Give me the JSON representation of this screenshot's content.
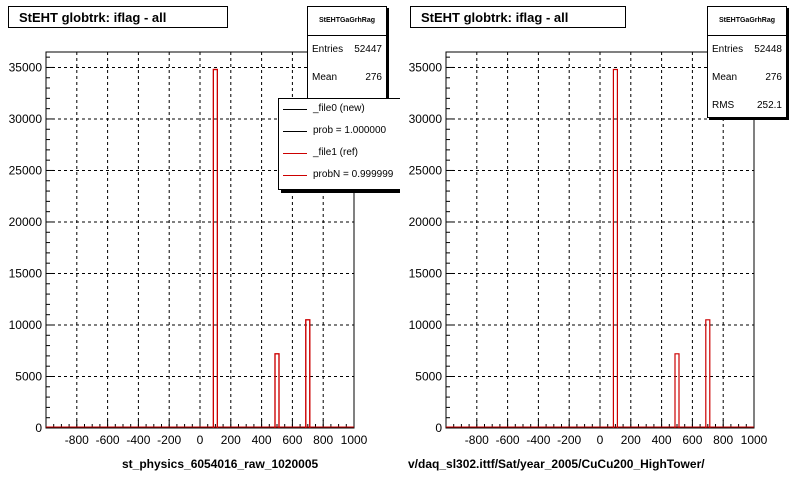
{
  "colors": {
    "new": "#000000",
    "ref": "#cc0000"
  },
  "chart_data": [
    {
      "type": "bar",
      "title": "StEHT globtrk: iflag - all",
      "xlabel": "",
      "ylabel": "",
      "xlim": [
        -1000,
        1000
      ],
      "ylim": [
        0,
        36500
      ],
      "xticks": [
        "-800",
        "-600",
        "-400",
        "-200",
        "0",
        "200",
        "400",
        "600",
        "800",
        "1000"
      ],
      "yticks": [
        "0",
        "5000",
        "10000",
        "15000",
        "20000",
        "25000",
        "30000",
        "35000"
      ],
      "grid": true,
      "series": [
        {
          "name": "_file0 (new)",
          "x": [
            100,
            500,
            700
          ],
          "values": [
            34800,
            7200,
            10500
          ]
        },
        {
          "name": "_file1 (ref)",
          "x": [
            100,
            500,
            700
          ],
          "values": [
            34800,
            7200,
            10500
          ]
        }
      ],
      "stats": {
        "box": "StEHTGaGrhRag",
        "entries_label": "Entries",
        "entries": "52447",
        "mean_label": "Mean",
        "mean": "276"
      },
      "legend": {
        "position": "top-right",
        "items": [
          {
            "label": "_file0 (new)",
            "color": "#000000"
          },
          {
            "label": "prob = 1.000000",
            "color": "#000000"
          },
          {
            "label": "_file1 (ref)",
            "color": "#cc0000"
          },
          {
            "label": "probN = 0.999999",
            "color": "#cc0000"
          }
        ]
      },
      "footer": "st_physics_6054016_raw_1020005"
    },
    {
      "type": "bar",
      "title": "StEHT globtrk: iflag - all",
      "xlabel": "",
      "ylabel": "",
      "xlim": [
        -1000,
        1000
      ],
      "ylim": [
        0,
        36500
      ],
      "xticks": [
        "-800",
        "-600",
        "-400",
        "-200",
        "0",
        "200",
        "400",
        "600",
        "800",
        "1000"
      ],
      "yticks": [
        "0",
        "5000",
        "10000",
        "15000",
        "20000",
        "25000",
        "30000",
        "35000"
      ],
      "grid": true,
      "series": [
        {
          "name": "",
          "x": [
            100,
            500,
            700
          ],
          "values": [
            34800,
            7200,
            10500
          ]
        }
      ],
      "stats": {
        "box": "StEHTGaGrhRag",
        "entries_label": "Entries",
        "entries": "52448",
        "mean_label": "Mean",
        "mean": "276",
        "rms_label": "RMS",
        "rms": "252.1"
      },
      "footer": "v/daq_sl302.ittf/Sat/year_2005/CuCu200_HighTower/"
    }
  ]
}
